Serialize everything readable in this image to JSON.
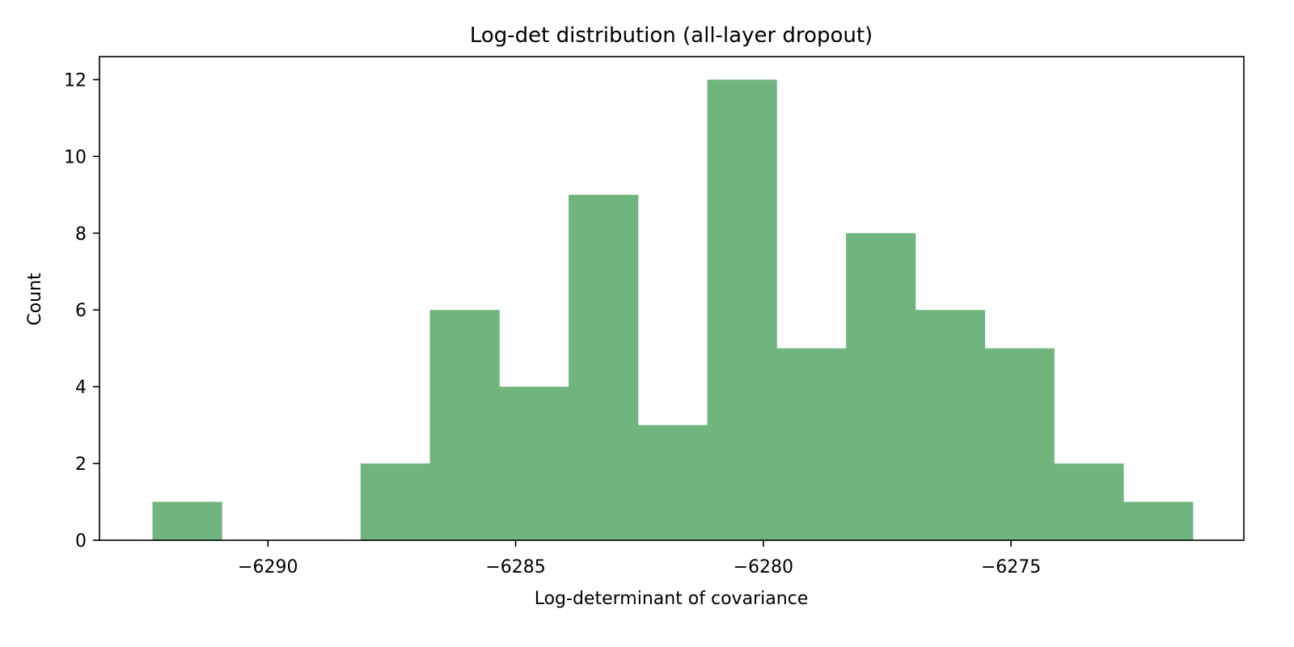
{
  "chart_data": {
    "type": "bar",
    "subtype": "histogram",
    "title": "Log-det distribution (all-layer dropout)",
    "xlabel": "Log-determinant of covariance",
    "ylabel": "Count",
    "bin_edges": [
      -6292.33,
      -6290.93,
      -6289.53,
      -6288.13,
      -6286.73,
      -6285.33,
      -6283.93,
      -6282.53,
      -6281.13,
      -6279.73,
      -6278.33,
      -6276.93,
      -6275.53,
      -6274.13,
      -6272.73,
      -6271.33
    ],
    "counts": [
      1,
      0,
      0,
      2,
      6,
      4,
      9,
      3,
      12,
      5,
      8,
      6,
      5,
      2,
      1
    ],
    "xlim": [
      -6293.4,
      -6270.3
    ],
    "ylim": [
      0,
      12.6
    ],
    "xticks": [
      -6290,
      -6285,
      -6280,
      -6275
    ],
    "xtick_labels": [
      "−6290",
      "−6285",
      "−6280",
      "−6275"
    ],
    "yticks": [
      0,
      2,
      4,
      6,
      8,
      10,
      12
    ],
    "ytick_labels": [
      "0",
      "2",
      "4",
      "6",
      "8",
      "10",
      "12"
    ],
    "bar_color": "#70b57d",
    "grid": false,
    "legend": false
  }
}
